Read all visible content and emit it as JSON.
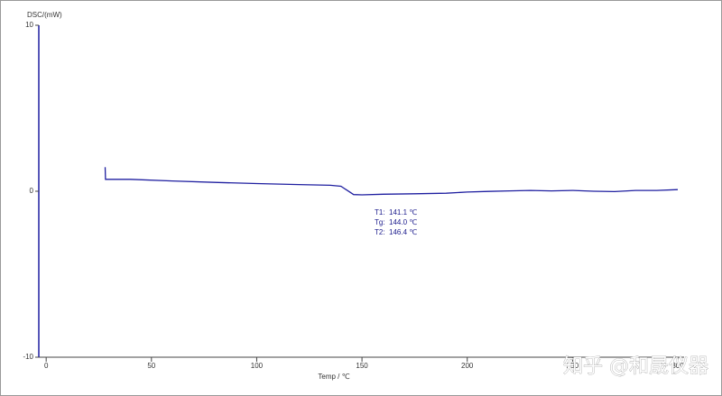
{
  "chart_data": {
    "type": "line",
    "y_label": "DSC/(mW)",
    "x_label": "Temp / ℃",
    "x": [
      28,
      28.2,
      40,
      60,
      80,
      100,
      120,
      135,
      140,
      143,
      146,
      150,
      160,
      175,
      190,
      200,
      210,
      220,
      230,
      240,
      250,
      260,
      270,
      280,
      290,
      300
    ],
    "series": [
      {
        "name": "DSC",
        "color": "#1f1fa0",
        "values": [
          1.45,
          0.72,
          0.72,
          0.62,
          0.53,
          0.46,
          0.4,
          0.36,
          0.3,
          0.05,
          -0.2,
          -0.22,
          -0.18,
          -0.15,
          -0.12,
          -0.05,
          -0.01,
          0.02,
          0.05,
          0.02,
          0.05,
          0.0,
          -0.02,
          0.05,
          0.05,
          0.1
        ]
      }
    ],
    "xlim": [
      -3.5,
      303
    ],
    "xticks": [
      0,
      50,
      100,
      150,
      200,
      250,
      300
    ],
    "ylim": [
      -10,
      10
    ],
    "yticks": [
      10,
      0,
      -10
    ],
    "annotations": [
      {
        "label": "T1:",
        "text": "141.1 ℃"
      },
      {
        "label": "Tg:",
        "text": "144.0 ℃"
      },
      {
        "label": "T2:",
        "text": "146.4 ℃"
      }
    ],
    "watermark": "知乎 @和晟仪器"
  }
}
